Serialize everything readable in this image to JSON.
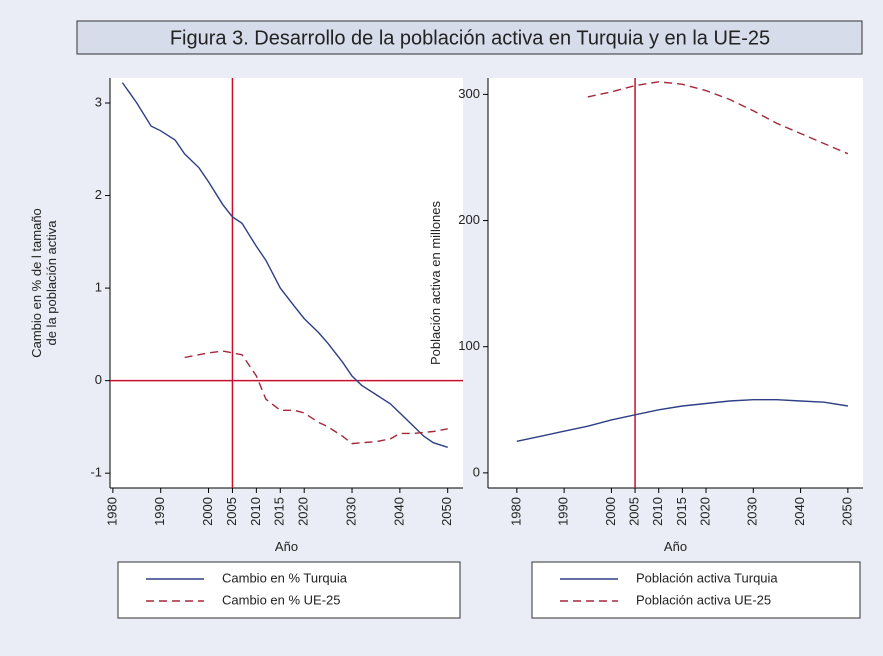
{
  "title": "Figura 3. Desarrollo de la población activa en Turquia y en la UE-25",
  "chart_data": [
    {
      "type": "line",
      "xlabel": "Año",
      "ylabel": [
        "Cambio en % de l tamaño",
        "de la población activa"
      ],
      "x": [
        1980,
        1982,
        1985,
        1988,
        1990,
        1993,
        1995,
        1998,
        2000,
        2003,
        2005,
        2007,
        2010,
        2012,
        2015,
        2018,
        2020,
        2023,
        2025,
        2028,
        2030,
        2032,
        2035,
        2038,
        2040,
        2043,
        2045,
        2047,
        2050
      ],
      "series": [
        {
          "name": "Cambio en % Turquia",
          "color": "#2e3f86",
          "dash": false,
          "values": [
            null,
            3.22,
            3.0,
            2.75,
            2.7,
            2.6,
            2.45,
            2.3,
            2.15,
            1.9,
            1.77,
            1.7,
            1.45,
            1.3,
            1.0,
            0.8,
            0.67,
            0.52,
            0.4,
            0.2,
            0.05,
            -0.05,
            -0.15,
            -0.25,
            -0.35,
            -0.5,
            -0.6,
            -0.67,
            -0.72
          ]
        },
        {
          "name": "Cambio en % UE-25",
          "color": "#a3283c",
          "dash": true,
          "values": [
            null,
            null,
            null,
            null,
            null,
            null,
            0.25,
            0.28,
            0.3,
            0.32,
            0.3,
            0.28,
            0.05,
            -0.2,
            -0.32,
            -0.32,
            -0.35,
            -0.45,
            -0.5,
            -0.6,
            -0.68,
            -0.67,
            -0.66,
            -0.63,
            -0.57,
            -0.57,
            -0.56,
            -0.55,
            -0.52
          ]
        }
      ],
      "xlim": [
        1979.4,
        2053.2
      ],
      "xticks": [
        1980,
        1990,
        2000,
        2005,
        2010,
        2015,
        2020,
        2030,
        2040,
        2050
      ],
      "ylim": [
        -1.16,
        3.27
      ],
      "yticks": [
        -1,
        0,
        1,
        2,
        3
      ],
      "reference_lines": {
        "x": 2005,
        "y": 0,
        "color": "#c8102e"
      }
    },
    {
      "type": "line",
      "xlabel": "Año",
      "ylabel": [
        "Población activa en millones"
      ],
      "x": [
        1980,
        1985,
        1990,
        1995,
        2000,
        2005,
        2010,
        2015,
        2020,
        2025,
        2030,
        2035,
        2040,
        2045,
        2050
      ],
      "series": [
        {
          "name": "Población activa Turquia",
          "color": "#2e3f86",
          "dash": false,
          "values": [
            25,
            29,
            33,
            37,
            42,
            46,
            50,
            53,
            55,
            57,
            58,
            58,
            57,
            56,
            53
          ]
        },
        {
          "name": "Población activa UE-25",
          "color": "#a3283c",
          "dash": true,
          "values": [
            null,
            null,
            null,
            298,
            302,
            307,
            310,
            308,
            303,
            296,
            287,
            277,
            269,
            261,
            253
          ]
        }
      ],
      "xlim": [
        1973.9,
        2053.2
      ],
      "xticks": [
        1980,
        1990,
        2000,
        2005,
        2010,
        2015,
        2020,
        2030,
        2040,
        2050
      ],
      "ylim": [
        -12,
        313
      ],
      "yticks": [
        0,
        100,
        200,
        300
      ],
      "reference_lines": {
        "x": 2005,
        "color": "#c8102e"
      }
    }
  ]
}
